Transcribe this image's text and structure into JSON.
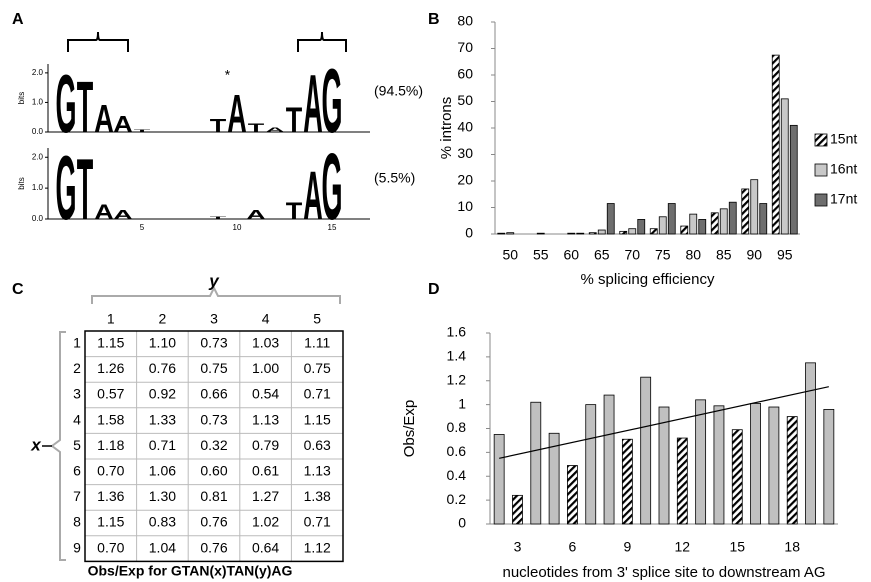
{
  "panel_labels": [
    "A",
    "B",
    "C",
    "D"
  ],
  "chart_data": [
    {
      "type": "logo",
      "ylabel": "bits",
      "xticks": [
        5,
        10,
        15
      ],
      "letter_colors": {
        "G": "#f6a623",
        "T": "#e3211c",
        "A": "#2e9a38",
        "C": "#2a5db0"
      },
      "logos": [
        {
          "yticks": [
            {
              "value": 0,
              "label": "0.0"
            },
            {
              "value": 1,
              "label": "1.0"
            },
            {
              "value": 2,
              "label": "2.0"
            }
          ],
          "annotation": "(94.5%)",
          "marker": {
            "text": "*",
            "x": 9.5
          },
          "letters": [
            {
              "x": 1,
              "letter": "G",
              "value": 2.0
            },
            {
              "x": 2,
              "letter": "T",
              "value": 1.75
            },
            {
              "x": 3,
              "letter": "A",
              "value": 0.95
            },
            {
              "x": 4,
              "letter": "A",
              "value": 0.55
            },
            {
              "x": 5,
              "letter": "T",
              "value": 0.08
            },
            {
              "x": 9,
              "letter": "T",
              "value": 0.45
            },
            {
              "x": 10,
              "letter": "A",
              "value": 1.3
            },
            {
              "x": 11,
              "letter": "T",
              "value": 0.3
            },
            {
              "x": 12,
              "letter": "A",
              "value": 0.15
            },
            {
              "x": 13,
              "letter": "T",
              "value": 0.85
            },
            {
              "x": 14,
              "letter": "A",
              "value": 2.0
            },
            {
              "x": 15,
              "letter": "G",
              "value": 2.2
            }
          ]
        },
        {
          "yticks": [
            {
              "value": 0,
              "label": "0.0"
            },
            {
              "value": 1,
              "label": "1.0"
            },
            {
              "value": 2,
              "label": "2.0"
            }
          ],
          "annotation": "(5.5%)",
          "letters": [
            {
              "x": 1,
              "letter": "G",
              "value": 2.1
            },
            {
              "x": 2,
              "letter": "T",
              "value": 2.0
            },
            {
              "x": 3,
              "letter": "A",
              "value": 0.5
            },
            {
              "x": 4,
              "letter": "A",
              "value": 0.3
            },
            {
              "x": 9,
              "letter": "T",
              "value": 0.08
            },
            {
              "x": 11,
              "letter": "A",
              "value": 0.3
            },
            {
              "x": 13,
              "letter": "T",
              "value": 0.55
            },
            {
              "x": 14,
              "letter": "A",
              "value": 1.6
            },
            {
              "x": 15,
              "letter": "G",
              "value": 2.2
            }
          ]
        }
      ]
    },
    {
      "type": "bar",
      "xlabel": "% splicing efficiency",
      "ylabel": "% introns",
      "categories": [
        "50",
        "55",
        "60",
        "65",
        "70",
        "75",
        "80",
        "85",
        "90",
        "95"
      ],
      "ylim": [
        0,
        80
      ],
      "yticks": [
        0,
        10,
        20,
        30,
        40,
        50,
        60,
        70,
        80
      ],
      "legend": "right",
      "series": [
        {
          "name": "15nt",
          "color": "#000000",
          "pattern": "hatched",
          "values": [
            0.3,
            0,
            0,
            0.5,
            1,
            2,
            3,
            8,
            17,
            67.5
          ]
        },
        {
          "name": "16nt",
          "color": "#c8c8c8",
          "values": [
            0.5,
            0.3,
            0.3,
            1.5,
            2,
            6.5,
            7.5,
            9.5,
            20.5,
            51
          ]
        },
        {
          "name": "17nt",
          "color": "#6e6e6e",
          "values": [
            0,
            0,
            0.3,
            11.5,
            5.5,
            11.5,
            5.5,
            12,
            11.5,
            41
          ]
        }
      ]
    },
    {
      "type": "bar",
      "xlabel": "nucleotides from 3' splice site to downstream AG",
      "ylabel": "Obs/Exp",
      "categories": [
        null,
        "3",
        null,
        null,
        "6",
        null,
        null,
        "9",
        null,
        null,
        "12",
        null,
        null,
        "15",
        null,
        null,
        "18",
        null,
        null
      ],
      "ylim": [
        0,
        1.6
      ],
      "yticks": [
        0,
        0.2,
        0.4,
        0.6,
        0.8,
        1,
        1.2,
        1.4,
        1.6
      ],
      "series": [
        {
          "color": "#c0c0c0",
          "values": [
            0.75,
            null,
            1.02,
            0.76,
            null,
            1.0,
            1.08,
            null,
            1.23,
            0.98,
            null,
            1.04,
            0.99,
            null,
            1.01,
            0.98,
            null,
            1.35,
            0.96
          ]
        },
        {
          "color": "#000000",
          "pattern": "hatched",
          "values": [
            null,
            0.24,
            null,
            null,
            0.49,
            null,
            null,
            0.71,
            null,
            null,
            0.72,
            null,
            null,
            0.79,
            null,
            null,
            0.9,
            null,
            null
          ]
        }
      ],
      "trendline": {
        "start": 0.55,
        "end": 1.15
      }
    }
  ],
  "table": {
    "title": "Obs/Exp for GTAN(x)TAN(y)AG",
    "x_label": "x",
    "y_label": "y",
    "columns": [
      "1",
      "2",
      "3",
      "4",
      "5"
    ],
    "rows": [
      {
        "label": "1",
        "cells": [
          "1.15",
          "1.10",
          "0.73",
          "1.03",
          "1.11"
        ]
      },
      {
        "label": "2",
        "cells": [
          "1.26",
          "0.76",
          "0.75",
          "1.00",
          "0.75"
        ]
      },
      {
        "label": "3",
        "cells": [
          "0.57",
          "0.92",
          "0.66",
          "0.54",
          "0.71"
        ]
      },
      {
        "label": "4",
        "cells": [
          "1.58",
          "1.33",
          "0.73",
          "1.13",
          "1.15"
        ]
      },
      {
        "label": "5",
        "cells": [
          "1.18",
          "0.71",
          "0.32",
          "0.79",
          "0.63"
        ]
      },
      {
        "label": "6",
        "cells": [
          "0.70",
          "1.06",
          "0.60",
          "0.61",
          "1.13"
        ]
      },
      {
        "label": "7",
        "cells": [
          "1.36",
          "1.30",
          "0.81",
          "1.27",
          "1.38"
        ]
      },
      {
        "label": "8",
        "cells": [
          "1.15",
          "0.83",
          "0.76",
          "1.02",
          "0.71"
        ]
      },
      {
        "label": "9",
        "cells": [
          "0.70",
          "1.04",
          "0.76",
          "0.64",
          "1.12"
        ]
      }
    ],
    "highlight": {
      "row": 4,
      "col": 2,
      "color": "#e3211c"
    }
  }
}
